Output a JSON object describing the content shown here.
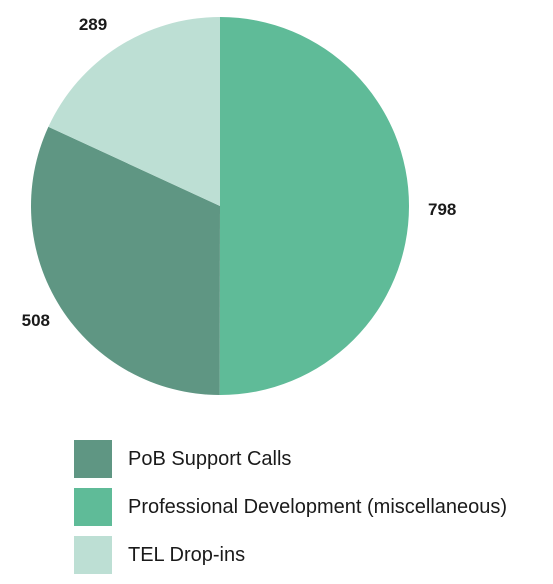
{
  "chart_data": {
    "type": "pie",
    "title": "",
    "categories": [
      "PoB Support Calls",
      "Professional Development (miscellaneous)",
      "TEL Drop-ins"
    ],
    "values": [
      508,
      798,
      289
    ],
    "colors": [
      "#5f9683",
      "#5fbb98",
      "#bddfd4"
    ],
    "legend_position": "bottom-left",
    "legend": [
      {
        "label": "PoB Support Calls",
        "color": "#5f9683"
      },
      {
        "label": "Professional Development (miscellaneous)",
        "color": "#5fbb98"
      },
      {
        "label": "TEL Drop-ins",
        "color": "#bddfd4"
      }
    ]
  }
}
